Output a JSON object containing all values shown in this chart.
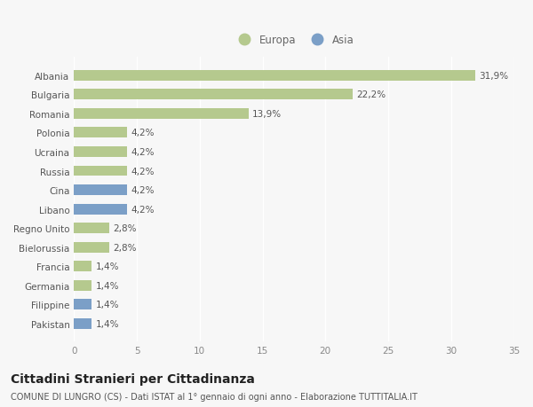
{
  "categories": [
    "Albania",
    "Bulgaria",
    "Romania",
    "Polonia",
    "Ucraina",
    "Russia",
    "Cina",
    "Libano",
    "Regno Unito",
    "Bielorussia",
    "Francia",
    "Germania",
    "Filippine",
    "Pakistan"
  ],
  "values": [
    31.9,
    22.2,
    13.9,
    4.2,
    4.2,
    4.2,
    4.2,
    4.2,
    2.8,
    2.8,
    1.4,
    1.4,
    1.4,
    1.4
  ],
  "labels": [
    "31,9%",
    "22,2%",
    "13,9%",
    "4,2%",
    "4,2%",
    "4,2%",
    "4,2%",
    "4,2%",
    "2,8%",
    "2,8%",
    "1,4%",
    "1,4%",
    "1,4%",
    "1,4%"
  ],
  "colors": [
    "#b5c98e",
    "#b5c98e",
    "#b5c98e",
    "#b5c98e",
    "#b5c98e",
    "#b5c98e",
    "#7b9fc7",
    "#7b9fc7",
    "#b5c98e",
    "#b5c98e",
    "#b5c98e",
    "#b5c98e",
    "#7b9fc7",
    "#7b9fc7"
  ],
  "europa_color": "#b5c98e",
  "asia_color": "#7b9fc7",
  "background_color": "#f7f7f7",
  "title": "Cittadini Stranieri per Cittadinanza",
  "subtitle": "COMUNE DI LUNGRO (CS) - Dati ISTAT al 1° gennaio di ogni anno - Elaborazione TUTTITALIA.IT",
  "xlim": [
    0,
    35
  ],
  "xticks": [
    0,
    5,
    10,
    15,
    20,
    25,
    30,
    35
  ],
  "bar_height": 0.55,
  "label_fontsize": 7.5,
  "tick_fontsize": 7.5,
  "ytick_fontsize": 7.5,
  "title_fontsize": 10,
  "subtitle_fontsize": 7,
  "legend_fontsize": 8.5
}
